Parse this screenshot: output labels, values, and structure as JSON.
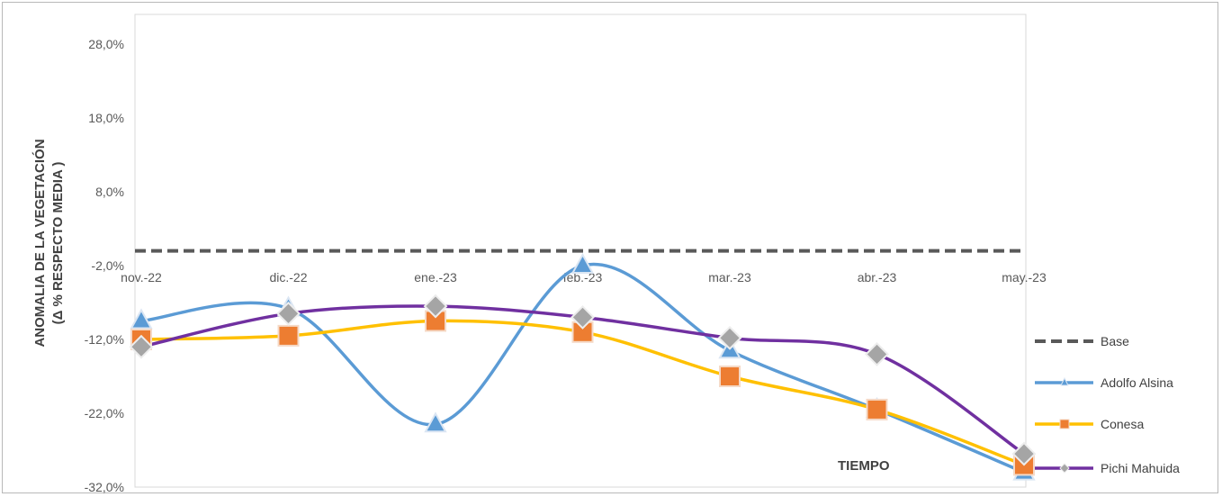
{
  "chart_data": {
    "type": "line",
    "title": "",
    "xlabel": "TIEMPO",
    "ylabel_line1": "ANOMALIA DE LA VEGETACIÓN",
    "ylabel_line2": "(Δ % RESPECTO MEDIA )",
    "categories": [
      "nov.-22",
      "dic.-22",
      "ene.-23",
      "feb.-23",
      "mar.-23",
      "abr.-23",
      "may.-23"
    ],
    "y_ticks": [
      "-32,0%",
      "-22,0%",
      "-12,0%",
      "-2,0%",
      "8,0%",
      "18,0%",
      "28,0%"
    ],
    "ylim": [
      -32,
      28
    ],
    "y_unit": "%",
    "grid": false,
    "legend_position": "right",
    "series": [
      {
        "name": "Base",
        "style": "dashed",
        "marker": "none",
        "color": "#595959",
        "values": [
          0,
          0,
          0,
          0,
          0,
          0,
          0
        ]
      },
      {
        "name": "Adolfo Alsina",
        "style": "solid",
        "marker": "triangle",
        "color": "#5b9bd5",
        "values": [
          -9.5,
          -7.8,
          -23.5,
          -2.0,
          -13.5,
          -21.5,
          -30.0
        ]
      },
      {
        "name": "Conesa",
        "style": "solid",
        "marker": "square",
        "color": "#ffc000",
        "marker_color": "#ed7d31",
        "values": [
          -12.0,
          -11.5,
          -9.5,
          -11.0,
          -17.0,
          -21.5,
          -29.0
        ]
      },
      {
        "name": "Pichi Mahuida",
        "style": "solid",
        "marker": "diamond",
        "color": "#7030a0",
        "marker_color": "#a5a5a5",
        "values": [
          -13.0,
          -8.5,
          -7.5,
          -9.0,
          -11.8,
          -14.0,
          -27.5
        ]
      }
    ]
  }
}
